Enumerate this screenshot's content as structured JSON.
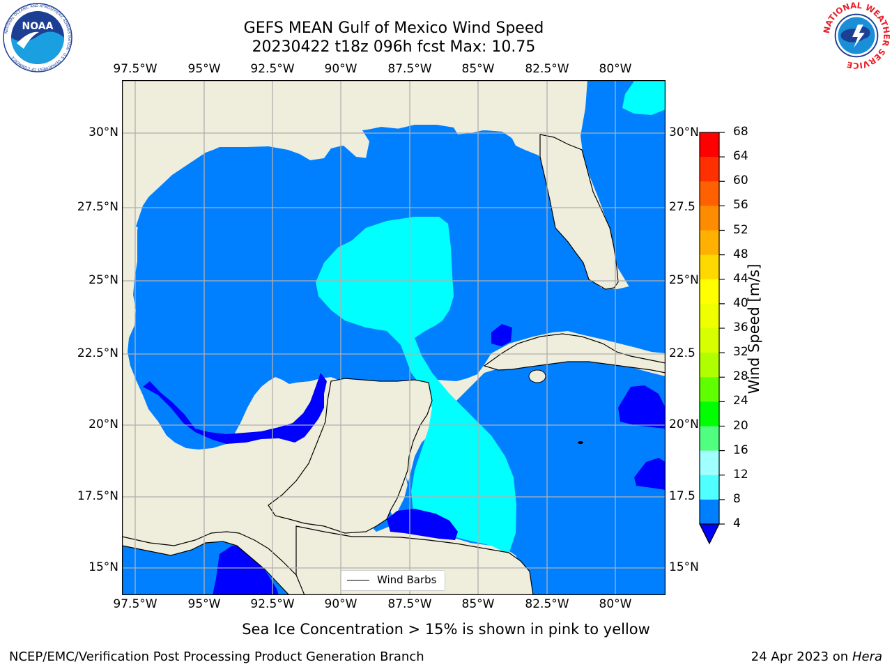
{
  "title": {
    "line1": "GEFS MEAN Gulf of Mexico Wind Speed",
    "line2": "20230422 t18z 096h fcst   Max: 10.75"
  },
  "map": {
    "lon_labels": [
      "97.5°W",
      "95°W",
      "92.5°W",
      "90°W",
      "87.5°W",
      "85°W",
      "82.5°W",
      "80°W"
    ],
    "lat_labels_left": [
      "30°N",
      "27.5°N",
      "25°N",
      "22.5°N",
      "20°N",
      "17.5°N",
      "15°N"
    ],
    "lat_labels_right": [
      "30°N",
      "27.5",
      "25°N",
      "22.5",
      "20°N",
      "17.5",
      "15°N"
    ],
    "legend_label": "Wind Barbs",
    "colors": {
      "land": "#efeddb",
      "wind_4_8": "#0080ff",
      "wind_8_12": "#00ffff",
      "wind_lt_4": "#0000ff",
      "grid": "#b0b0b0"
    }
  },
  "colorbar": {
    "label": "Wind Speed [m/s]",
    "ticks": [
      "68",
      "64",
      "60",
      "56",
      "52",
      "48",
      "44",
      "40",
      "36",
      "32",
      "28",
      "24",
      "20",
      "16",
      "12",
      "8",
      "4"
    ],
    "colors": [
      "#ff0000",
      "#ff3000",
      "#ff6000",
      "#ff8c00",
      "#ffb000",
      "#ffd800",
      "#ffff00",
      "#f0ff00",
      "#d8ff00",
      "#b0ff00",
      "#60ff00",
      "#00ff00",
      "#50ff80",
      "#a0ffff",
      "#50ffff",
      "#00ffff",
      "#0080ff"
    ],
    "extend_color": "#0000ff"
  },
  "subtitle": "Sea Ice Concentration > 15% is shown in pink to yellow",
  "footer": {
    "left": "NCEP/EMC/Verification Post Processing Product Generation Branch",
    "right_date": "24 Apr 2023 on ",
    "right_machine": "Hera"
  },
  "logos": {
    "left_text": "NOAA",
    "left_ring": "NATIONAL OCEANIC AND ATMOSPHERIC ADMINISTRATION · U.S. DEPARTMENT OF COMMERCE",
    "right_ring": "NATIONAL WEATHER SERVICE"
  }
}
